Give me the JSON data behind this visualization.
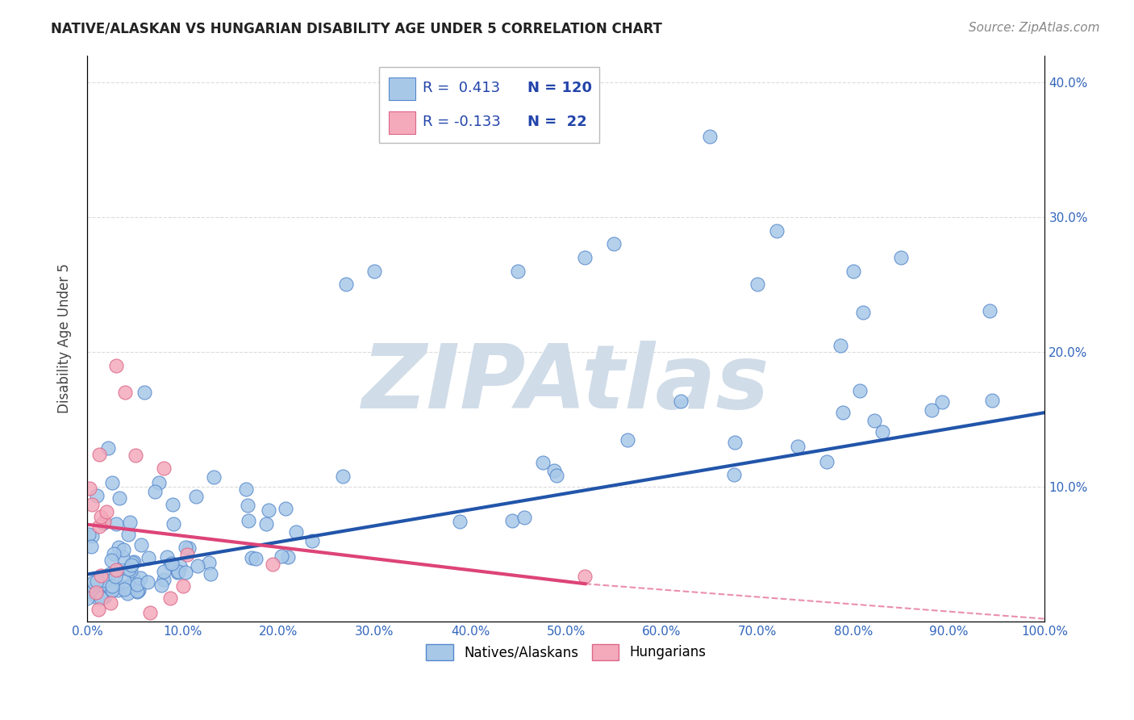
{
  "title": "NATIVE/ALASKAN VS HUNGARIAN DISABILITY AGE UNDER 5 CORRELATION CHART",
  "source": "Source: ZipAtlas.com",
  "ylabel": "Disability Age Under 5",
  "xlim": [
    0,
    100
  ],
  "ylim": [
    0,
    42
  ],
  "ytick_labels": [
    "",
    "10.0%",
    "20.0%",
    "30.0%",
    "40.0%"
  ],
  "xtick_labels": [
    "0.0%",
    "10.0%",
    "20.0%",
    "30.0%",
    "40.0%",
    "50.0%",
    "60.0%",
    "70.0%",
    "80.0%",
    "90.0%",
    "100.0%"
  ],
  "blue_R": 0.413,
  "blue_N": 120,
  "pink_R": -0.133,
  "pink_N": 22,
  "blue_color": "#A8C8E8",
  "pink_color": "#F4AABB",
  "blue_edge_color": "#5588CC",
  "pink_edge_color": "#DD6688",
  "blue_line_color": "#2255AA",
  "pink_line_color": "#DD4477",
  "watermark": "ZIPAtlas",
  "watermark_color": "#D0DCE8",
  "blue_line_y_start": 3.5,
  "blue_line_y_end": 15.5,
  "pink_line_y_start": 7.2,
  "pink_line_y_end": 2.8,
  "pink_dash_y_start": 2.8,
  "pink_dash_y_end": 0.2,
  "pink_solid_end_x": 52
}
